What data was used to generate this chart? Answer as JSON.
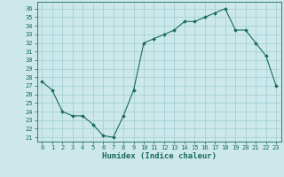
{
  "title": "",
  "xlabel": "Humidex (Indice chaleur)",
  "ylabel": "",
  "x": [
    0,
    1,
    2,
    3,
    4,
    5,
    6,
    7,
    8,
    9,
    10,
    11,
    12,
    13,
    14,
    15,
    16,
    17,
    18,
    19,
    20,
    21,
    22,
    23
  ],
  "y": [
    27.5,
    26.5,
    24.0,
    23.5,
    23.5,
    22.5,
    21.2,
    21.0,
    23.5,
    26.5,
    32.0,
    32.5,
    33.0,
    33.5,
    34.5,
    34.5,
    35.0,
    35.5,
    36.0,
    33.5,
    33.5,
    32.0,
    30.5,
    27.0
  ],
  "line_color": "#1a6b5a",
  "marker_color": "#1a6b5a",
  "bg_color": "#cce8ea",
  "grid_color": "#9ecdd0",
  "ylim": [
    20.5,
    36.8
  ],
  "xlim": [
    -0.5,
    23.5
  ],
  "yticks": [
    21,
    22,
    23,
    24,
    25,
    26,
    27,
    28,
    29,
    30,
    31,
    32,
    33,
    34,
    35,
    36
  ],
  "xticks": [
    0,
    1,
    2,
    3,
    4,
    5,
    6,
    7,
    8,
    9,
    10,
    11,
    12,
    13,
    14,
    15,
    16,
    17,
    18,
    19,
    20,
    21,
    22,
    23
  ],
  "tick_color": "#1a6b5a",
  "label_fontsize": 6.5,
  "tick_fontsize": 5.0
}
